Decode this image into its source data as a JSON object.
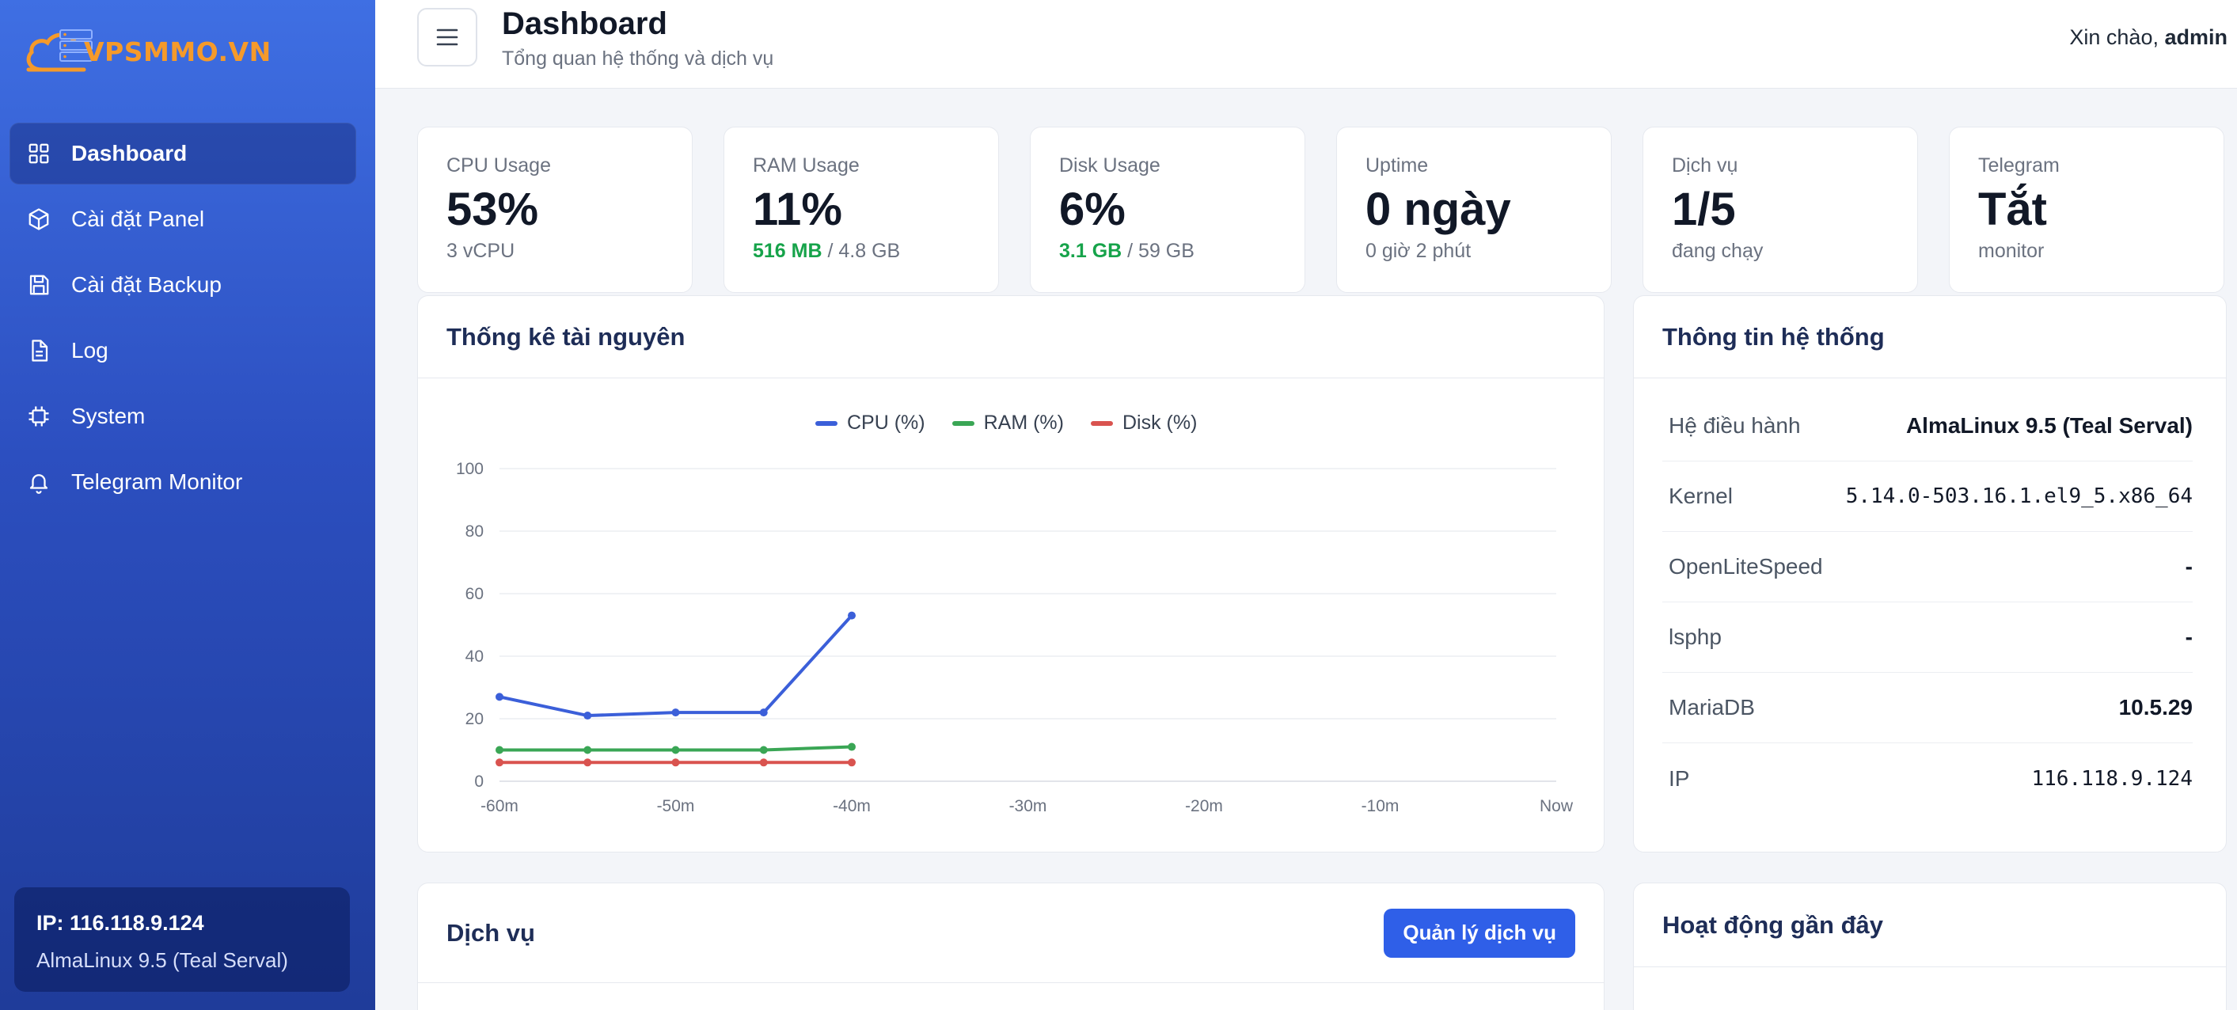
{
  "brand": {
    "name": "VPSMMO.VN",
    "accent": "#f59a2a"
  },
  "sidebar": {
    "items": [
      {
        "label": "Dashboard",
        "icon": "grid-icon",
        "active": true
      },
      {
        "label": "Cài đặt Panel",
        "icon": "cube-icon"
      },
      {
        "label": "Cài đặt Backup",
        "icon": "save-icon"
      },
      {
        "label": "Log",
        "icon": "file-icon"
      },
      {
        "label": "System",
        "icon": "cpu-icon"
      },
      {
        "label": "Telegram Monitor",
        "icon": "bell-icon"
      }
    ],
    "server": {
      "ip": "IP: 116.118.9.124",
      "os": "AlmaLinux 9.5 (Teal Serval)"
    }
  },
  "header": {
    "title": "Dashboard",
    "subtitle": "Tổng quan hệ thống và dịch vụ",
    "greeting": "Xin chào,",
    "user": "admin"
  },
  "stats": [
    {
      "label": "CPU Usage",
      "value": "53%",
      "sub": "3 vCPU"
    },
    {
      "label": "RAM Usage",
      "value": "11%",
      "sub_hl": "516 MB",
      "sub": " / 4.8 GB"
    },
    {
      "label": "Disk Usage",
      "value": "6%",
      "sub_hl": "3.1 GB",
      "sub": " / 59 GB"
    },
    {
      "label": "Uptime",
      "value": "0 ngày",
      "sub": "0 giờ 2 phút"
    },
    {
      "label": "Dịch vụ",
      "value": "1/5",
      "sub": "đang chạy"
    },
    {
      "label": "Telegram",
      "value": "Tắt",
      "sub": "monitor"
    }
  ],
  "resource_panel": {
    "title": "Thống kê tài nguyên"
  },
  "chart_data": {
    "type": "line",
    "x": [
      "-60m",
      "-50m",
      "-40m",
      "-30m",
      "-20m",
      "-10m",
      "Now"
    ],
    "ylim": [
      0,
      100
    ],
    "yticks": [
      0,
      20,
      40,
      60,
      80,
      100
    ],
    "series": [
      {
        "name": "CPU (%)",
        "color": "#3b5fd9",
        "points": [
          [
            "-60m",
            27
          ],
          [
            "-55m",
            21
          ],
          [
            "-50m",
            22
          ],
          [
            "-45m",
            22
          ],
          [
            "-40m",
            53
          ]
        ]
      },
      {
        "name": "RAM (%)",
        "color": "#3aa655",
        "points": [
          [
            "-60m",
            10
          ],
          [
            "-55m",
            10
          ],
          [
            "-50m",
            10
          ],
          [
            "-45m",
            10
          ],
          [
            "-40m",
            11
          ]
        ]
      },
      {
        "name": "Disk (%)",
        "color": "#d9534f",
        "points": [
          [
            "-60m",
            6
          ],
          [
            "-55m",
            6
          ],
          [
            "-50m",
            6
          ],
          [
            "-45m",
            6
          ],
          [
            "-40m",
            6
          ]
        ]
      }
    ],
    "grid": true,
    "legend": "top-center"
  },
  "system_info": {
    "title": "Thông tin hệ thống",
    "rows": [
      {
        "key": "Hệ điều hành",
        "value": "AlmaLinux 9.5 (Teal Serval)"
      },
      {
        "key": "Kernel",
        "value": "5.14.0-503.16.1.el9_5.x86_64"
      },
      {
        "key": "OpenLiteSpeed",
        "value": "-"
      },
      {
        "key": "lsphp",
        "value": "-"
      },
      {
        "key": "MariaDB",
        "value": "10.5.29"
      },
      {
        "key": "IP",
        "value": "116.118.9.124"
      }
    ]
  },
  "services": {
    "title": "Dịch vụ",
    "button": "Quản lý dịch vụ"
  },
  "activity": {
    "title": "Hoạt động gần đây"
  }
}
